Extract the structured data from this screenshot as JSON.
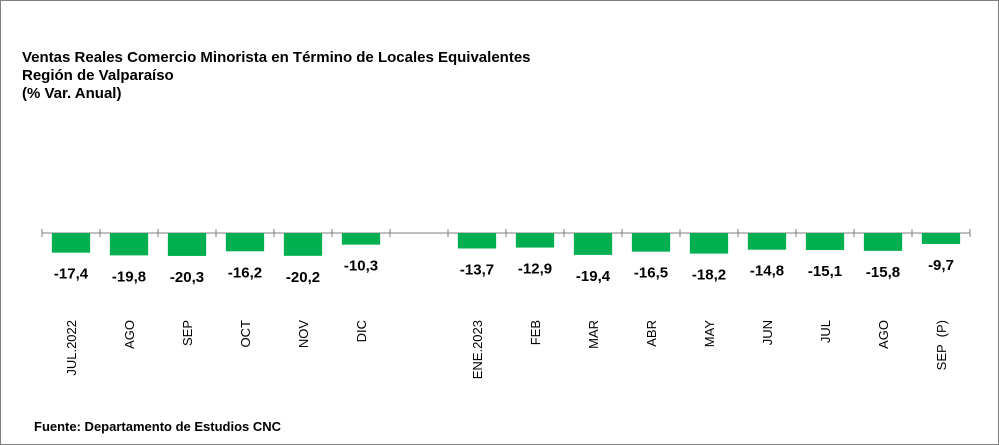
{
  "chart_data": {
    "type": "bar",
    "title": "Ventas Reales Comercio Minorista en Término de Locales Equivalentes",
    "subtitle": "Región de Valparaíso",
    "unit_label": "(% Var. Anual)",
    "source": "Fuente: Departamento de Estudios CNC",
    "color": "#00b050",
    "categories": [
      "JUL.2022",
      "AGO",
      "SEP",
      "OCT",
      "NOV",
      "DIC",
      null,
      "ENE.2023",
      "FEB",
      "MAR",
      "ABR",
      "MAY",
      "JUN",
      "JUL",
      "AGO",
      "SEP  (P)"
    ],
    "values": [
      -17.4,
      -19.8,
      -20.3,
      -16.2,
      -20.2,
      -10.3,
      null,
      -13.7,
      -12.9,
      -19.4,
      -16.5,
      -18.2,
      -14.8,
      -15.1,
      -15.8,
      -9.7
    ],
    "value_labels": [
      "-17,4",
      "-19,8",
      "-20,3",
      "-16,2",
      "-20,2",
      "-10,3",
      null,
      "-13,7",
      "-12,9",
      "-19,4",
      "-16,5",
      "-18,2",
      "-14,8",
      "-15,1",
      "-15,8",
      "-9,7"
    ]
  }
}
